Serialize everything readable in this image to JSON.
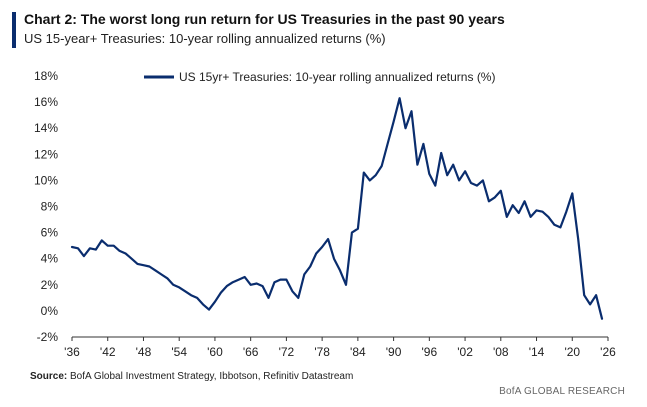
{
  "header": {
    "title": "Chart 2: The worst long run return for US Treasuries in the past 90 years",
    "subtitle": "US 15-year+ Treasuries: 10-year rolling annualized returns (%)"
  },
  "footer": {
    "source_label": "Source:",
    "source_text": "BofA Global Investment Strategy, Ibbotson, Refinitiv Datastream",
    "brand": "BofA GLOBAL RESEARCH"
  },
  "colors": {
    "line": "#0a2d6e",
    "accent": "#0a2d6e"
  },
  "chart_data": {
    "type": "line",
    "title": "",
    "xlabel": "",
    "ylabel": "",
    "xlim": [
      1936,
      2026
    ],
    "ylim": [
      -2,
      18
    ],
    "y_ticks": [
      -2,
      0,
      2,
      4,
      6,
      8,
      10,
      12,
      14,
      16,
      18
    ],
    "y_tick_labels": [
      "-2%",
      "0%",
      "2%",
      "4%",
      "6%",
      "8%",
      "10%",
      "12%",
      "14%",
      "16%",
      "18%"
    ],
    "x_ticks": [
      1936,
      1942,
      1948,
      1954,
      1960,
      1966,
      1972,
      1978,
      1984,
      1990,
      1996,
      2002,
      2008,
      2014,
      2020,
      2026
    ],
    "x_tick_labels": [
      "'36",
      "'42",
      "'48",
      "'54",
      "'60",
      "'66",
      "'72",
      "'78",
      "'84",
      "'90",
      "'96",
      "'02",
      "'08",
      "'14",
      "'20",
      "'26"
    ],
    "grid": false,
    "legend": "top-center",
    "series": [
      {
        "name": "US 15yr+ Treasuries: 10-year rolling annualized returns (%)",
        "x": [
          1936,
          1937,
          1938,
          1939,
          1940,
          1941,
          1942,
          1943,
          1944,
          1945,
          1946,
          1947,
          1948,
          1949,
          1950,
          1951,
          1952,
          1953,
          1954,
          1955,
          1956,
          1957,
          1958,
          1959,
          1960,
          1961,
          1962,
          1963,
          1964,
          1965,
          1966,
          1967,
          1968,
          1969,
          1970,
          1971,
          1972,
          1973,
          1974,
          1975,
          1976,
          1977,
          1978,
          1979,
          1980,
          1981,
          1982,
          1983,
          1984,
          1985,
          1986,
          1987,
          1988,
          1989,
          1990,
          1991,
          1992,
          1993,
          1994,
          1995,
          1996,
          1997,
          1998,
          1999,
          2000,
          2001,
          2002,
          2003,
          2004,
          2005,
          2006,
          2007,
          2008,
          2009,
          2010,
          2011,
          2012,
          2013,
          2014,
          2015,
          2016,
          2017,
          2018,
          2019,
          2020,
          2021,
          2022,
          2023,
          2024,
          2025
        ],
        "values": [
          4.9,
          4.8,
          4.2,
          4.8,
          4.7,
          5.4,
          5.0,
          5.0,
          4.6,
          4.4,
          4.0,
          3.6,
          3.5,
          3.4,
          3.1,
          2.8,
          2.5,
          2.0,
          1.8,
          1.5,
          1.2,
          1.0,
          0.5,
          0.1,
          0.7,
          1.4,
          1.9,
          2.2,
          2.4,
          2.6,
          2.0,
          2.1,
          1.9,
          1.0,
          2.2,
          2.4,
          2.4,
          1.5,
          1.0,
          2.8,
          3.4,
          4.4,
          4.9,
          5.5,
          4.0,
          3.1,
          2.0,
          6.0,
          6.3,
          10.6,
          10.0,
          10.4,
          11.1,
          12.8,
          14.5,
          16.3,
          14.0,
          15.3,
          11.2,
          12.8,
          10.5,
          9.6,
          12.1,
          10.4,
          11.2,
          10.0,
          10.7,
          9.8,
          9.6,
          10.0,
          8.4,
          8.7,
          9.2,
          7.2,
          8.1,
          7.5,
          8.4,
          7.2,
          7.7,
          7.6,
          7.2,
          6.6,
          6.4,
          7.6,
          9.0,
          5.5,
          1.2,
          0.5,
          1.2,
          -0.6
        ]
      }
    ]
  }
}
